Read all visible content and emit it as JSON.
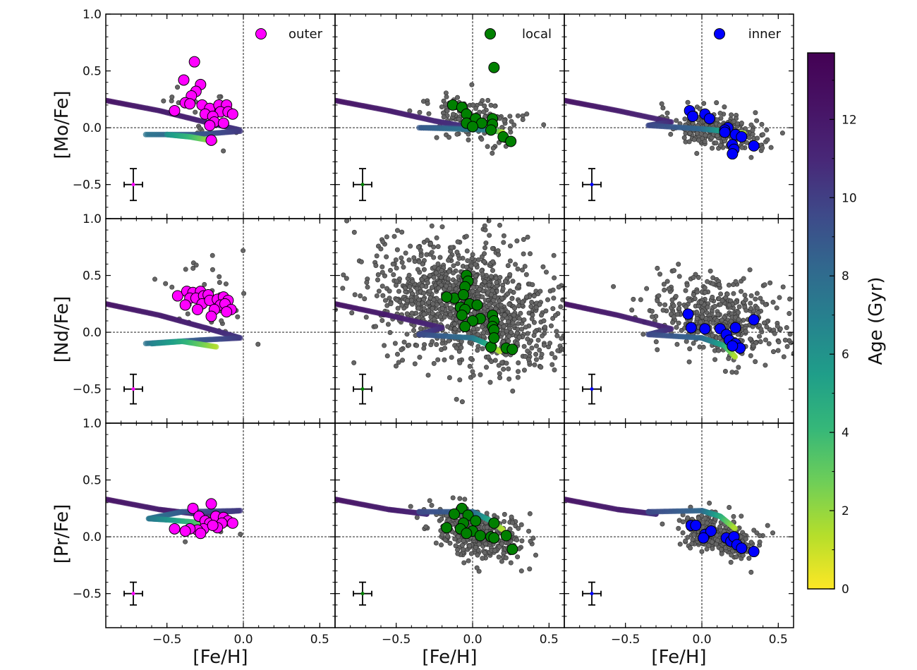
{
  "chart_data": {
    "type": "scatter",
    "layout": "3x3 grid",
    "xlabel": "[Fe/H]",
    "xlim": [
      -0.9,
      0.6
    ],
    "ylim": [
      -0.8,
      1.0
    ],
    "x_ticks": [
      "−0.5",
      "0.0",
      "0.5"
    ],
    "y_ticks": [
      "−0.5",
      "0.0",
      "0.5",
      "1.0"
    ],
    "x_tick_values": [
      -0.5,
      0.0,
      0.5
    ],
    "y_tick_values": [
      -0.5,
      0.0,
      0.5,
      1.0
    ],
    "rows": [
      {
        "ylabel": "[Mo/Fe]",
        "element": "Mo"
      },
      {
        "ylabel": "[Nd/Fe]",
        "element": "Nd"
      },
      {
        "ylabel": "[Pr/Fe]",
        "element": "Pr"
      }
    ],
    "columns": [
      {
        "legend": "outer",
        "color": "#ff00ff"
      },
      {
        "legend": "local",
        "color": "#008000"
      },
      {
        "legend": "inner",
        "color": "#0000ff"
      }
    ],
    "error_bar": {
      "x": -0.72,
      "y": -0.5,
      "xerr": 0.06,
      "yerr_rows": [
        0.14,
        0.13,
        0.1
      ]
    },
    "colorbar": {
      "label": "Age (Gyr)",
      "ticks": [
        "0",
        "2",
        "4",
        "6",
        "8",
        "10",
        "12"
      ],
      "tick_values": [
        0,
        2,
        4,
        6,
        8,
        10,
        12
      ],
      "range": [
        0,
        13.7
      ],
      "colormap": "viridis"
    },
    "highlight_points": {
      "Mo": {
        "outer": [
          [
            -0.32,
            0.58
          ],
          [
            -0.39,
            0.42
          ],
          [
            -0.28,
            0.38
          ],
          [
            -0.31,
            0.32
          ],
          [
            -0.34,
            0.28
          ],
          [
            -0.38,
            0.22
          ],
          [
            -0.35,
            0.21
          ],
          [
            -0.27,
            0.2
          ],
          [
            -0.45,
            0.15
          ],
          [
            -0.22,
            0.17
          ],
          [
            -0.16,
            0.2
          ],
          [
            -0.11,
            0.2
          ],
          [
            -0.15,
            0.14
          ],
          [
            -0.1,
            0.14
          ],
          [
            -0.07,
            0.12
          ],
          [
            -0.25,
            0.12
          ],
          [
            -0.2,
            0.1
          ],
          [
            -0.19,
            0.05
          ],
          [
            -0.22,
            0.02
          ],
          [
            -0.13,
            0.04
          ],
          [
            -0.21,
            -0.11
          ]
        ],
        "local": [
          [
            -0.13,
            0.2
          ],
          [
            -0.07,
            0.18
          ],
          [
            -0.04,
            0.12
          ],
          [
            0.02,
            0.08
          ],
          [
            0.13,
            0.08
          ],
          [
            -0.04,
            0.04
          ],
          [
            0.06,
            0.04
          ],
          [
            0.13,
            0.03
          ],
          [
            0.0,
            0.01
          ],
          [
            0.12,
            -0.02
          ],
          [
            0.2,
            -0.08
          ],
          [
            0.25,
            -0.12
          ],
          [
            0.14,
            0.53
          ]
        ],
        "inner": [
          [
            -0.08,
            0.15
          ],
          [
            -0.06,
            0.1
          ],
          [
            0.02,
            0.12
          ],
          [
            0.05,
            0.08
          ],
          [
            0.17,
            0.0
          ],
          [
            0.15,
            -0.02
          ],
          [
            0.22,
            -0.06
          ],
          [
            0.26,
            -0.08
          ],
          [
            0.2,
            -0.15
          ],
          [
            0.21,
            -0.19
          ],
          [
            0.2,
            -0.23
          ],
          [
            0.34,
            -0.16
          ],
          [
            0.15,
            -0.04
          ]
        ]
      },
      "Nd": {
        "outer": [
          [
            -0.43,
            0.32
          ],
          [
            -0.37,
            0.36
          ],
          [
            -0.33,
            0.35
          ],
          [
            -0.28,
            0.36
          ],
          [
            -0.35,
            0.3
          ],
          [
            -0.31,
            0.3
          ],
          [
            -0.26,
            0.32
          ],
          [
            -0.23,
            0.33
          ],
          [
            -0.38,
            0.24
          ],
          [
            -0.27,
            0.25
          ],
          [
            -0.22,
            0.28
          ],
          [
            -0.17,
            0.29
          ],
          [
            -0.13,
            0.31
          ],
          [
            -0.1,
            0.28
          ],
          [
            -0.15,
            0.24
          ],
          [
            -0.12,
            0.25
          ],
          [
            -0.08,
            0.2
          ],
          [
            -0.19,
            0.2
          ],
          [
            -0.11,
            0.18
          ],
          [
            -0.21,
            0.14
          ],
          [
            -0.3,
            0.2
          ]
        ],
        "local": [
          [
            -0.04,
            0.5
          ],
          [
            -0.03,
            0.45
          ],
          [
            -0.05,
            0.4
          ],
          [
            -0.12,
            0.3
          ],
          [
            -0.17,
            0.31
          ],
          [
            -0.06,
            0.33
          ],
          [
            -0.02,
            0.25
          ],
          [
            -0.08,
            0.22
          ],
          [
            -0.05,
            0.2
          ],
          [
            0.03,
            0.24
          ],
          [
            -0.07,
            0.15
          ],
          [
            0.05,
            0.12
          ],
          [
            0.0,
            0.1
          ],
          [
            0.13,
            0.15
          ],
          [
            0.14,
            0.1
          ],
          [
            0.13,
            0.05
          ],
          [
            0.14,
            0.02
          ],
          [
            -0.05,
            0.05
          ],
          [
            0.12,
            -0.13
          ],
          [
            0.22,
            -0.14
          ],
          [
            0.26,
            -0.15
          ],
          [
            0.14,
            -0.05
          ]
        ],
        "inner": [
          [
            -0.09,
            0.16
          ],
          [
            -0.07,
            0.04
          ],
          [
            0.02,
            0.03
          ],
          [
            0.12,
            0.03
          ],
          [
            0.22,
            0.04
          ],
          [
            0.16,
            -0.02
          ],
          [
            0.18,
            -0.07
          ],
          [
            0.22,
            -0.1
          ],
          [
            0.25,
            -0.14
          ],
          [
            0.34,
            0.11
          ],
          [
            0.2,
            -0.12
          ]
        ]
      },
      "Pr": {
        "outer": [
          [
            -0.33,
            0.25
          ],
          [
            -0.21,
            0.29
          ],
          [
            -0.29,
            0.18
          ],
          [
            -0.25,
            0.14
          ],
          [
            -0.22,
            0.12
          ],
          [
            -0.18,
            0.18
          ],
          [
            -0.13,
            0.17
          ],
          [
            -0.1,
            0.14
          ],
          [
            -0.14,
            0.12
          ],
          [
            -0.07,
            0.12
          ],
          [
            -0.17,
            0.08
          ],
          [
            -0.26,
            0.07
          ],
          [
            -0.3,
            0.06
          ],
          [
            -0.35,
            0.07
          ],
          [
            -0.45,
            0.07
          ],
          [
            -0.38,
            0.05
          ],
          [
            -0.28,
            0.03
          ],
          [
            -0.2,
            0.1
          ]
        ],
        "local": [
          [
            -0.07,
            0.25
          ],
          [
            -0.12,
            0.2
          ],
          [
            -0.03,
            0.19
          ],
          [
            0.02,
            0.14
          ],
          [
            0.14,
            0.12
          ],
          [
            -0.06,
            0.12
          ],
          [
            -0.17,
            0.08
          ],
          [
            -0.08,
            0.07
          ],
          [
            0.0,
            0.05
          ],
          [
            -0.04,
            0.03
          ],
          [
            0.05,
            0.01
          ],
          [
            0.12,
            0.0
          ],
          [
            0.22,
            0.01
          ],
          [
            0.14,
            -0.01
          ],
          [
            0.26,
            -0.11
          ]
        ],
        "inner": [
          [
            -0.07,
            0.1
          ],
          [
            -0.04,
            0.1
          ],
          [
            0.02,
            0.02
          ],
          [
            0.06,
            0.05
          ],
          [
            0.01,
            -0.01
          ],
          [
            0.16,
            -0.01
          ],
          [
            0.19,
            -0.04
          ],
          [
            0.21,
            0.0
          ],
          [
            0.23,
            -0.07
          ],
          [
            0.26,
            -0.1
          ],
          [
            0.34,
            -0.13
          ]
        ]
      }
    }
  }
}
